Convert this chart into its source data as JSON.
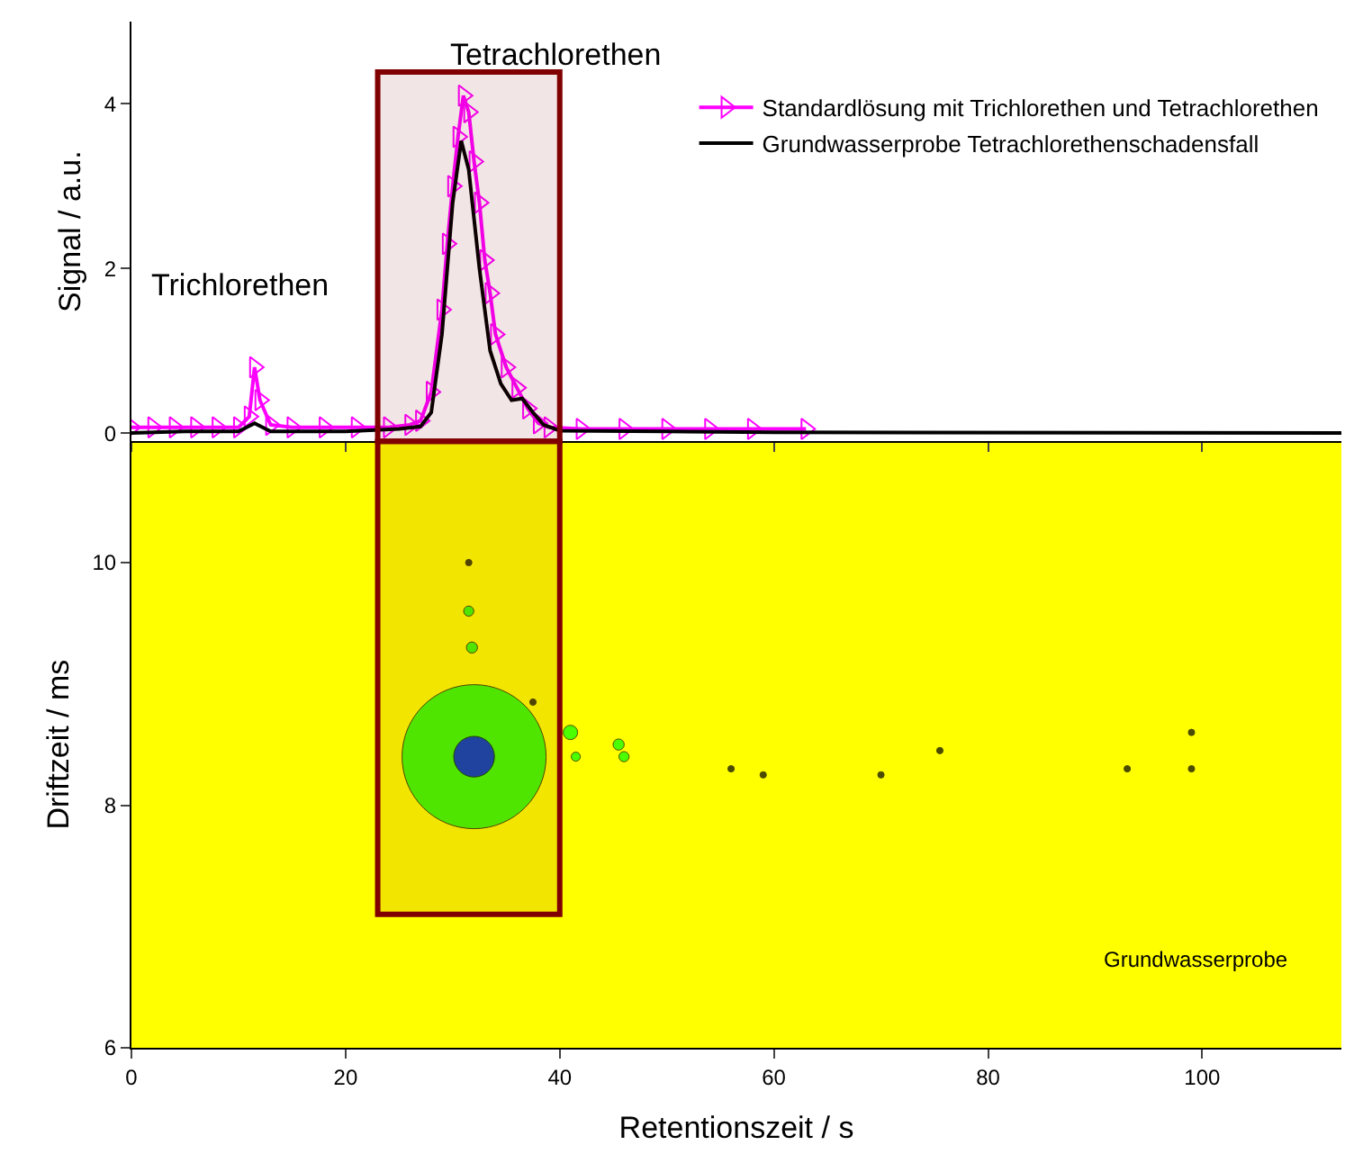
{
  "chart_data": [
    {
      "type": "line",
      "ylabel": "Signal / a.u.",
      "xlim": [
        0,
        113
      ],
      "xticks": [
        0,
        20,
        40,
        60,
        80,
        100
      ],
      "ylim": [
        -0.1,
        5
      ],
      "yticks": [
        0,
        2,
        4
      ],
      "tick_labels": "y",
      "legend": "top right",
      "grid": false,
      "series": [
        {
          "name": "Standardlösung mit Trichlorethen und Tetrachlorethen",
          "color": "#ff00ff",
          "marker": "triangle",
          "x": [
            0,
            2,
            4,
            6,
            8,
            10,
            11,
            11.5,
            12,
            13,
            15,
            18,
            21,
            24,
            26,
            27,
            28,
            29,
            29.5,
            30,
            30.5,
            31,
            31.5,
            32,
            32.5,
            33,
            33.5,
            34,
            35,
            36,
            37,
            38,
            39,
            42,
            46,
            50,
            54,
            58,
            63
          ],
          "values": [
            0.07,
            0.07,
            0.07,
            0.07,
            0.07,
            0.07,
            0.2,
            0.8,
            0.4,
            0.1,
            0.07,
            0.07,
            0.07,
            0.07,
            0.1,
            0.15,
            0.5,
            1.5,
            2.3,
            3.0,
            3.6,
            4.1,
            3.9,
            3.3,
            2.8,
            2.1,
            1.7,
            1.2,
            0.8,
            0.55,
            0.3,
            0.12,
            0.07,
            0.05,
            0.05,
            0.05,
            0.05,
            0.05,
            0.05
          ]
        },
        {
          "name": "Grundwasserprobe Tetrachlorethenschadensfall",
          "color": "#000000",
          "marker": "none",
          "x": [
            0,
            5,
            10,
            11.5,
            13,
            20,
            25,
            27,
            28,
            29,
            30,
            30.8,
            31.5,
            32.5,
            33.5,
            34.5,
            35.5,
            36.5,
            37.5,
            38.5,
            40,
            50,
            60,
            113
          ],
          "values": [
            0.0,
            0.02,
            0.02,
            0.12,
            0.02,
            0.02,
            0.05,
            0.08,
            0.25,
            1.2,
            2.8,
            3.55,
            3.2,
            2.0,
            1.0,
            0.6,
            0.4,
            0.42,
            0.25,
            0.1,
            0.03,
            0.02,
            0.01,
            0.0
          ]
        }
      ],
      "annotations": [
        "Trichlorethen",
        "Tetrachlorethen"
      ],
      "bands": [
        {
          "axis": "x",
          "from": 23,
          "to": 40,
          "color": "#800000"
        }
      ]
    },
    {
      "type": "bubble",
      "xlabel": "Retentionszeit / s",
      "ylabel": "Driftzeit / ms",
      "xlim": [
        0,
        113
      ],
      "xticks": [
        0,
        20,
        40,
        60,
        80,
        100
      ],
      "ylim": [
        6,
        11
      ],
      "yticks": [
        6,
        8,
        10
      ],
      "grid": false,
      "x": [
        32,
        32,
        31.5,
        31.5,
        31.8,
        37.5,
        41,
        41.5,
        45.5,
        46,
        56,
        59,
        70,
        75.5,
        93,
        99,
        99
      ],
      "values": [
        8.4,
        8.4,
        10,
        9.6,
        9.3,
        8.85,
        8.6,
        8.4,
        8.5,
        8.4,
        8.3,
        8.25,
        8.25,
        8.45,
        8.3,
        8.6,
        8.3
      ],
      "sizes": [
        1,
        0.08,
        0.002,
        0.005,
        0.006,
        0.002,
        0.01,
        0.004,
        0.006,
        0.005,
        0.002,
        0.002,
        0.002,
        0.002,
        0.002,
        0.002,
        0.002
      ],
      "colors": [
        "#00ff00",
        "#0000ff",
        "#000000",
        "#00ff00",
        "#00ff00",
        "#000000",
        "#00ff00",
        "#00ff00",
        "#00ff00",
        "#00ff00",
        "#000000",
        "#000000",
        "#000000",
        "#000000",
        "#000000",
        "#000000",
        "#000000"
      ],
      "annotations": [
        "Grundwasserprobe"
      ],
      "bands": [
        {
          "axis": "x",
          "from": 23,
          "to": 40,
          "color": "#800000"
        }
      ]
    }
  ]
}
